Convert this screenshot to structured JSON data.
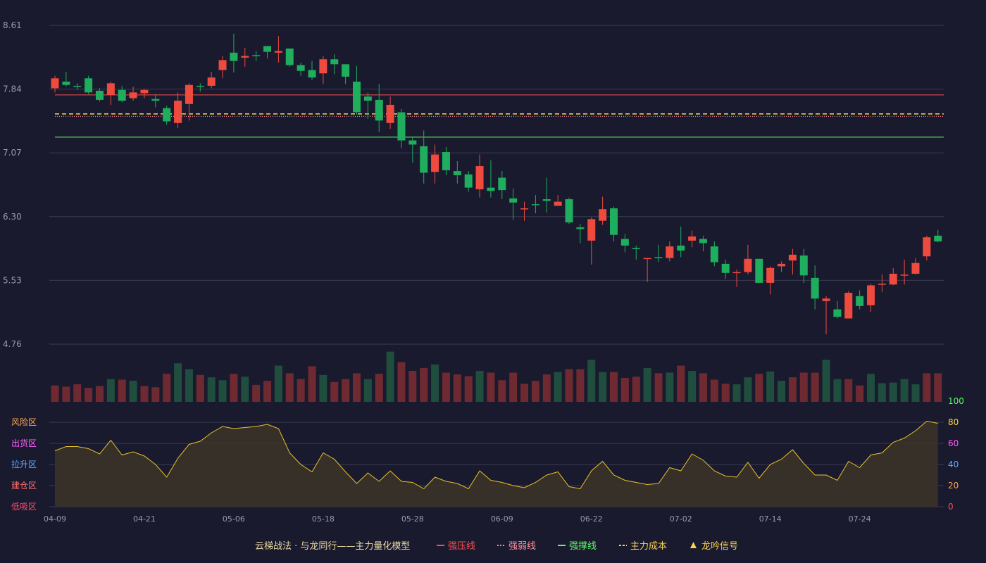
{
  "chart_data": {
    "type": "candlestick",
    "x_ticks": [
      "04-09",
      "04-21",
      "05-06",
      "05-18",
      "05-28",
      "06-09",
      "06-22",
      "07-02",
      "07-14",
      "07-24"
    ],
    "y_ticks": [
      "8.61",
      "7.84",
      "7.07",
      "6.30",
      "5.53",
      "4.76"
    ],
    "ylim": [
      4.76,
      8.61
    ],
    "candles": [
      [
        7.85,
        7.97,
        7.8,
        8.0
      ],
      [
        7.93,
        7.89,
        7.87,
        8.05
      ],
      [
        7.88,
        7.87,
        7.83,
        7.91
      ],
      [
        7.97,
        7.8,
        7.78,
        8.0
      ],
      [
        7.82,
        7.71,
        7.69,
        7.85
      ],
      [
        7.77,
        7.91,
        7.65,
        7.93
      ],
      [
        7.83,
        7.7,
        7.68,
        7.88
      ],
      [
        7.73,
        7.8,
        7.7,
        7.87
      ],
      [
        7.79,
        7.83,
        7.73,
        7.84
      ],
      [
        7.72,
        7.7,
        7.62,
        7.78
      ],
      [
        7.61,
        7.45,
        7.41,
        7.64
      ],
      [
        7.43,
        7.7,
        7.37,
        7.8
      ],
      [
        7.66,
        7.89,
        7.46,
        7.91
      ],
      [
        7.88,
        7.87,
        7.81,
        7.91
      ],
      [
        7.88,
        7.98,
        7.85,
        8.05
      ],
      [
        8.07,
        8.19,
        7.97,
        8.24
      ],
      [
        8.28,
        8.18,
        8.04,
        8.51
      ],
      [
        8.22,
        8.24,
        8.11,
        8.34
      ],
      [
        8.25,
        8.24,
        8.18,
        8.3
      ],
      [
        8.36,
        8.29,
        8.21,
        8.36
      ],
      [
        8.28,
        8.3,
        8.16,
        8.48
      ],
      [
        8.33,
        8.13,
        8.11,
        8.33
      ],
      [
        8.13,
        8.06,
        8.0,
        8.16
      ],
      [
        8.07,
        7.98,
        7.95,
        8.18
      ],
      [
        8.03,
        8.2,
        7.9,
        8.24
      ],
      [
        8.2,
        8.14,
        8.02,
        8.26
      ],
      [
        8.14,
        7.99,
        7.9,
        8.11
      ],
      [
        7.93,
        7.56,
        7.53,
        8.12
      ],
      [
        7.75,
        7.7,
        7.48,
        7.8
      ],
      [
        7.71,
        7.46,
        7.32,
        7.9
      ],
      [
        7.43,
        7.65,
        7.36,
        7.75
      ],
      [
        7.56,
        7.22,
        7.13,
        7.6
      ],
      [
        7.22,
        7.17,
        6.95,
        7.27
      ],
      [
        7.15,
        6.83,
        6.7,
        7.34
      ],
      [
        6.84,
        7.05,
        6.7,
        7.17
      ],
      [
        7.08,
        6.86,
        6.8,
        7.14
      ],
      [
        6.85,
        6.8,
        6.7,
        6.97
      ],
      [
        6.81,
        6.65,
        6.6,
        6.85
      ],
      [
        6.63,
        6.91,
        6.53,
        7.05
      ],
      [
        6.65,
        6.61,
        6.53,
        6.98
      ],
      [
        6.77,
        6.62,
        6.51,
        6.85
      ],
      [
        6.52,
        6.47,
        6.26,
        6.64
      ],
      [
        6.4,
        6.4,
        6.25,
        6.48
      ],
      [
        6.45,
        6.44,
        6.34,
        6.56
      ],
      [
        6.51,
        6.49,
        6.35,
        6.77
      ],
      [
        6.43,
        6.48,
        6.43,
        6.56
      ],
      [
        6.51,
        6.23,
        6.21,
        6.53
      ],
      [
        6.17,
        6.15,
        5.98,
        6.21
      ],
      [
        6.01,
        6.27,
        5.72,
        6.29
      ],
      [
        6.25,
        6.39,
        6.2,
        6.54
      ],
      [
        6.4,
        6.08,
        6.0,
        6.42
      ],
      [
        6.03,
        5.95,
        5.87,
        6.09
      ],
      [
        5.92,
        5.91,
        5.78,
        5.95
      ],
      [
        5.8,
        5.8,
        5.51,
        5.8
      ],
      [
        5.81,
        5.8,
        5.75,
        5.96
      ],
      [
        5.8,
        5.94,
        5.76,
        6.0
      ],
      [
        5.95,
        5.89,
        5.81,
        6.18
      ],
      [
        6.01,
        6.06,
        5.93,
        6.13
      ],
      [
        6.03,
        5.98,
        5.88,
        6.07
      ],
      [
        5.94,
        5.75,
        5.7,
        6.0
      ],
      [
        5.73,
        5.62,
        5.55,
        5.78
      ],
      [
        5.62,
        5.63,
        5.45,
        5.66
      ],
      [
        5.63,
        5.79,
        5.6,
        5.96
      ],
      [
        5.79,
        5.5,
        5.5,
        5.79
      ],
      [
        5.5,
        5.68,
        5.36,
        5.7
      ],
      [
        5.7,
        5.73,
        5.63,
        5.76
      ],
      [
        5.77,
        5.84,
        5.6,
        5.91
      ],
      [
        5.83,
        5.59,
        5.5,
        5.91
      ],
      [
        5.56,
        5.31,
        5.18,
        5.71
      ],
      [
        5.28,
        5.31,
        4.88,
        5.34
      ],
      [
        5.18,
        5.09,
        5.07,
        5.28
      ],
      [
        5.07,
        5.38,
        5.08,
        5.4
      ],
      [
        5.34,
        5.22,
        5.18,
        5.41
      ],
      [
        5.23,
        5.47,
        5.15,
        5.49
      ],
      [
        5.48,
        5.49,
        5.39,
        5.6
      ],
      [
        5.48,
        5.61,
        5.47,
        5.68
      ],
      [
        5.59,
        5.6,
        5.48,
        5.78
      ],
      [
        5.61,
        5.74,
        5.6,
        5.8
      ],
      [
        5.82,
        6.05,
        5.77,
        6.07
      ],
      [
        6.07,
        6.0,
        5.99,
        6.14
      ]
    ],
    "volume": [
      [
        28,
        "up"
      ],
      [
        26,
        "up"
      ],
      [
        30,
        "up"
      ],
      [
        24,
        "up"
      ],
      [
        27,
        "up"
      ],
      [
        39,
        "dn"
      ],
      [
        38,
        "up"
      ],
      [
        36,
        "dn"
      ],
      [
        27,
        "up"
      ],
      [
        25,
        "up"
      ],
      [
        48,
        "up"
      ],
      [
        66,
        "dn"
      ],
      [
        56,
        "dn"
      ],
      [
        46,
        "up"
      ],
      [
        42,
        "dn"
      ],
      [
        37,
        "dn"
      ],
      [
        48,
        "up"
      ],
      [
        43,
        "dn"
      ],
      [
        29,
        "up"
      ],
      [
        36,
        "up"
      ],
      [
        62,
        "dn"
      ],
      [
        49,
        "up"
      ],
      [
        39,
        "up"
      ],
      [
        61,
        "up"
      ],
      [
        46,
        "dn"
      ],
      [
        34,
        "up"
      ],
      [
        39,
        "up"
      ],
      [
        49,
        "up"
      ],
      [
        39,
        "dn"
      ],
      [
        48,
        "up"
      ],
      [
        86,
        "dn"
      ],
      [
        68,
        "up"
      ],
      [
        53,
        "up"
      ],
      [
        58,
        "up"
      ],
      [
        64,
        "dn"
      ],
      [
        50,
        "up"
      ],
      [
        47,
        "up"
      ],
      [
        44,
        "up"
      ],
      [
        53,
        "dn"
      ],
      [
        50,
        "up"
      ],
      [
        37,
        "up"
      ],
      [
        50,
        "up"
      ],
      [
        31,
        "up"
      ],
      [
        36,
        "up"
      ],
      [
        47,
        "up"
      ],
      [
        51,
        "dn"
      ],
      [
        56,
        "up"
      ],
      [
        56,
        "up"
      ],
      [
        72,
        "dn"
      ],
      [
        51,
        "dn"
      ],
      [
        51,
        "up"
      ],
      [
        41,
        "up"
      ],
      [
        43,
        "up"
      ],
      [
        58,
        "dn"
      ],
      [
        49,
        "up"
      ],
      [
        50,
        "dn"
      ],
      [
        62,
        "up"
      ],
      [
        53,
        "dn"
      ],
      [
        49,
        "up"
      ],
      [
        38,
        "up"
      ],
      [
        31,
        "up"
      ],
      [
        30,
        "dn"
      ],
      [
        42,
        "dn"
      ],
      [
        48,
        "up"
      ],
      [
        52,
        "dn"
      ],
      [
        36,
        "dn"
      ],
      [
        42,
        "up"
      ],
      [
        50,
        "up"
      ],
      [
        50,
        "up"
      ],
      [
        72,
        "dn"
      ],
      [
        39,
        "dn"
      ],
      [
        39,
        "up"
      ],
      [
        28,
        "up"
      ],
      [
        48,
        "dn"
      ],
      [
        32,
        "dn"
      ],
      [
        33,
        "dn"
      ],
      [
        39,
        "dn"
      ],
      [
        30,
        "dn"
      ],
      [
        49,
        "up"
      ],
      [
        49,
        "up"
      ]
    ],
    "indicator_ticks": [
      "100",
      "80",
      "60",
      "40",
      "20",
      "0"
    ],
    "indicator_zones": [
      "风险区",
      "出货区",
      "拉升区",
      "建仓区",
      "低吸区"
    ],
    "indicator": [
      53,
      57,
      57,
      55,
      50,
      63,
      49,
      52,
      48,
      40,
      28,
      46,
      59,
      62,
      70,
      76,
      74,
      75,
      76,
      78,
      74,
      51,
      40,
      33,
      51,
      45,
      33,
      22,
      32,
      24,
      34,
      24,
      23,
      17,
      28,
      24,
      22,
      17,
      34,
      25,
      23,
      20,
      18,
      23,
      30,
      33,
      19,
      17,
      34,
      43,
      30,
      25,
      23,
      21,
      22,
      37,
      34,
      50,
      44,
      34,
      29,
      28,
      42,
      27,
      40,
      45,
      54,
      41,
      30,
      30,
      25,
      43,
      37,
      49,
      51,
      61,
      65,
      72,
      81,
      79
    ],
    "lines": {
      "strong_resistance": 7.77,
      "strong_weak_dotted": 7.51,
      "main_cost": 7.54,
      "support": 7.26
    },
    "title": "云梯战法 · 与龙同行——主力量化模型",
    "legend": [
      {
        "name": "强压线",
        "color": "#ff4d4d",
        "style": "solid"
      },
      {
        "name": "强弱线",
        "color": "#ff8fa0",
        "style": "dotted"
      },
      {
        "name": "强撑线",
        "color": "#5cff6a",
        "style": "solid"
      },
      {
        "name": "主力成本",
        "color": "#ffd24d",
        "style": "dashed"
      },
      {
        "name": "龙吟信号",
        "color": "#ffd24d",
        "style": "triangle"
      }
    ],
    "colors": {
      "up": "#ef4a3e",
      "down": "#1fad5e",
      "vol_up": "#6e2a30",
      "vol_down": "#1f4d3e",
      "line": "#e8c22c"
    }
  }
}
